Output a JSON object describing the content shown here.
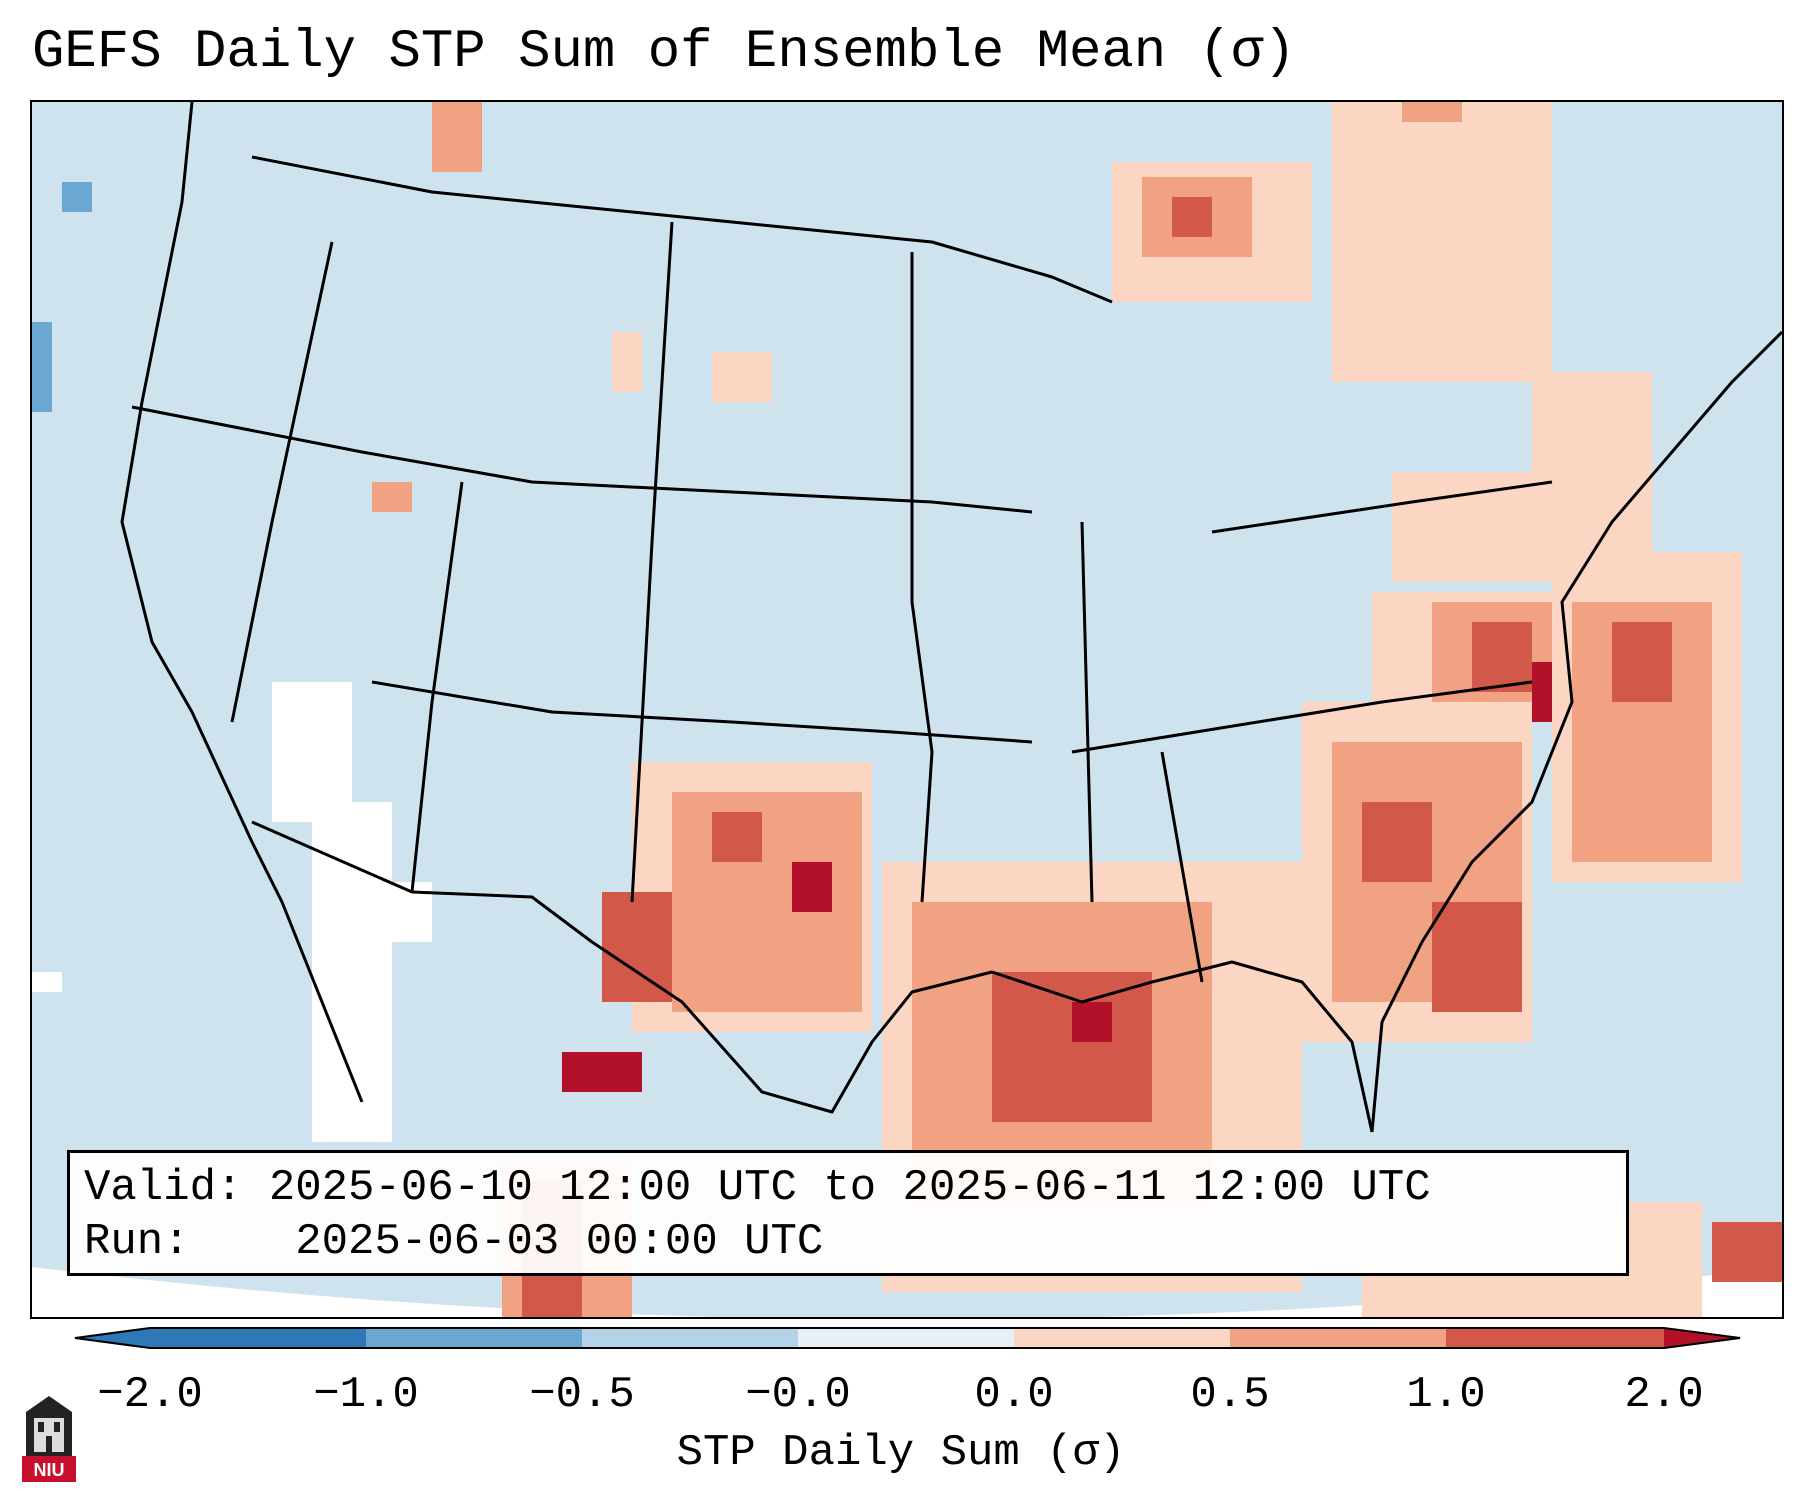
{
  "title": "GEFS Daily STP Sum of Ensemble Mean (σ)",
  "info": {
    "valid_label": "Valid:",
    "valid_value": "2025-06-10 12:00 UTC to 2025-06-11 12:00 UTC",
    "run_label": "Run:",
    "run_value": "2025-06-03 00:00 UTC"
  },
  "colorbar": {
    "label": "STP Daily Sum (σ)",
    "ticks": [
      "−2.0",
      "−1.0",
      "−0.5",
      "−0.0",
      "0.0",
      "0.5",
      "1.0",
      "2.0"
    ],
    "colors": [
      "#2e78b7",
      "#6aa8d2",
      "#b3d4e8",
      "#e6f0f6",
      "#fbd6c3",
      "#f0a283",
      "#d2594a",
      "#b3112a"
    ]
  },
  "map": {
    "ocean_background": "#cfe3ef",
    "white_band_color": "#ffffff"
  },
  "logo": {
    "text": "NIU",
    "color": "#c8102e"
  }
}
